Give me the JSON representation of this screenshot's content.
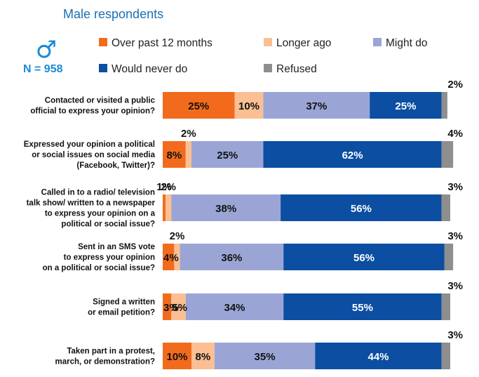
{
  "chart_data": {
    "type": "bar",
    "orientation": "horizontal",
    "stacked": true,
    "title": "",
    "subtitle": "Male respondents",
    "sample_label": "N = 958",
    "symbol": "♂",
    "xlim": [
      0,
      100
    ],
    "grid": false,
    "legend_position": "top",
    "categories": [
      [
        "Contacted or visited a public",
        "official to express your opinion?"
      ],
      [
        "Expressed your opinion a political",
        "or social issues on social media",
        "(Facebook, Twitter)?"
      ],
      [
        "Called in to a radio/ television",
        "talk show/ written to a newspaper",
        "to express your opinion on a",
        "political or social issue?"
      ],
      [
        "Sent in an SMS vote",
        "to express your opinion",
        "on a political or social issue?"
      ],
      [
        "Signed a written",
        "or email petition?"
      ],
      [
        "Taken part in a protest,",
        "march, or demonstration?"
      ]
    ],
    "series": [
      {
        "name": "Over past 12 months",
        "color": "#f26b1d",
        "values": [
          25,
          8,
          1,
          4,
          3,
          10
        ],
        "labels": [
          "25%",
          "8%",
          "1%",
          "4%",
          "3%",
          "10%"
        ]
      },
      {
        "name": "Longer ago",
        "color": "#fbbf93",
        "values": [
          10,
          2,
          2,
          2,
          5,
          8
        ],
        "labels": [
          "10%",
          "2%",
          "2%",
          "2%",
          "5%",
          "8%"
        ]
      },
      {
        "name": "Might do",
        "color": "#9aa5d6",
        "values": [
          37,
          25,
          38,
          36,
          34,
          35
        ],
        "labels": [
          "37%",
          "25%",
          "38%",
          "36%",
          "34%",
          "35%"
        ]
      },
      {
        "name": "Would never do",
        "color": "#0b4ea2",
        "values": [
          25,
          62,
          56,
          56,
          55,
          44
        ],
        "labels": [
          "25%",
          "62%",
          "56%",
          "56%",
          "55%",
          "44%"
        ]
      },
      {
        "name": "Refused",
        "color": "#8e8e8e",
        "values": [
          2,
          4,
          3,
          3,
          3,
          3
        ],
        "labels": [
          "2%",
          "4%",
          "3%",
          "3%",
          "3%",
          "3%"
        ]
      }
    ]
  }
}
